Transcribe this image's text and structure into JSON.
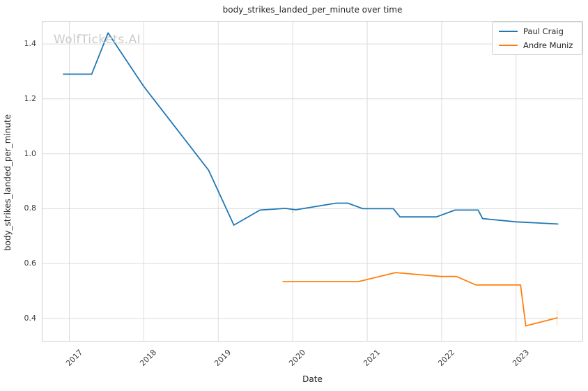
{
  "watermark": "WolfTickets.AI",
  "chart_data": {
    "type": "line",
    "title": "body_strikes_landed_per_minute over time",
    "xlabel": "Date",
    "ylabel": "body_strikes_landed_per_minute",
    "x_ticks": [
      2017,
      2018,
      2019,
      2020,
      2021,
      2022,
      2023
    ],
    "y_ticks": [
      0.4,
      0.6,
      0.8,
      1.0,
      1.2,
      1.4
    ],
    "xlim": [
      2016.63,
      2023.9
    ],
    "ylim": [
      0.316,
      1.484
    ],
    "grid": true,
    "legend_position": "upper right",
    "series": [
      {
        "name": "Paul Craig",
        "color": "#1f77b4",
        "points": [
          [
            2016.92,
            1.29
          ],
          [
            2017.3,
            1.29
          ],
          [
            2017.52,
            1.44
          ],
          [
            2018.0,
            1.245
          ],
          [
            2018.87,
            0.94
          ],
          [
            2019.21,
            0.74
          ],
          [
            2019.56,
            0.795
          ],
          [
            2019.9,
            0.801
          ],
          [
            2020.04,
            0.796
          ],
          [
            2020.58,
            0.82
          ],
          [
            2020.74,
            0.82
          ],
          [
            2020.94,
            0.8
          ],
          [
            2021.35,
            0.8
          ],
          [
            2021.44,
            0.77
          ],
          [
            2021.93,
            0.77
          ],
          [
            2022.18,
            0.795
          ],
          [
            2022.49,
            0.795
          ],
          [
            2022.55,
            0.764
          ],
          [
            2023.0,
            0.752
          ],
          [
            2023.56,
            0.744
          ]
        ]
      },
      {
        "name": "Andre Muniz",
        "color": "#ff7f0e",
        "points": [
          [
            2019.87,
            0.534
          ],
          [
            2020.88,
            0.534
          ],
          [
            2021.38,
            0.567
          ],
          [
            2021.99,
            0.553
          ],
          [
            2022.2,
            0.553
          ],
          [
            2022.46,
            0.522
          ],
          [
            2023.06,
            0.522
          ],
          [
            2023.13,
            0.373
          ],
          [
            2023.55,
            0.402
          ]
        ]
      }
    ],
    "error_bars": [
      {
        "series": 0,
        "x": 2020.0,
        "y_low": 0.783,
        "y_high": 0.802
      },
      {
        "series": 1,
        "x": 2023.55,
        "y_low": 0.375,
        "y_high": 0.43
      }
    ]
  },
  "colors": {
    "grid": "#dcdcdc",
    "frame": "#cfcfcf",
    "text": "#262626",
    "tick_text": "#3a3a3a",
    "watermark": "#cbcbcb"
  }
}
